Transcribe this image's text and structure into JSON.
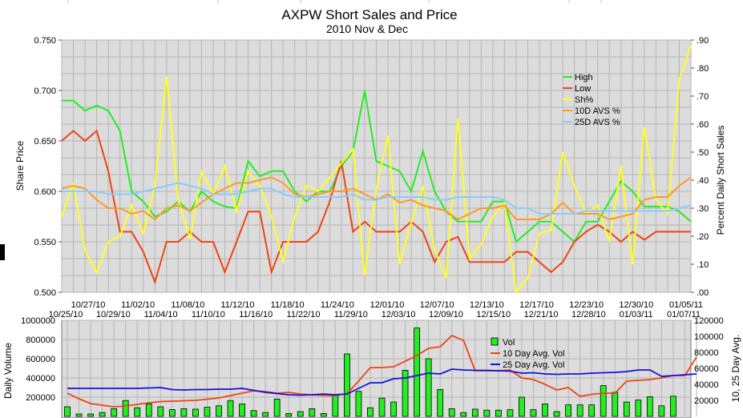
{
  "chart_data": [
    {
      "type": "line",
      "title": "AXPW Short Sales and Price",
      "subtitle": "2010 Nov & Dec",
      "ylabel": "Share Price",
      "y2label": "Percent Daily Short Sales",
      "ylim": [
        0.5,
        0.75
      ],
      "y2lim": [
        0,
        90
      ],
      "yticks": [
        "0.500",
        "0.550",
        "0.600",
        "0.650",
        "0.700",
        "0.750"
      ],
      "y2ticks": [
        ".00",
        ".10",
        ".20",
        ".30",
        ".40",
        ".50",
        ".60",
        ".70",
        ".80",
        ".90"
      ],
      "xticks_upper": [
        "10/27/10",
        "11/02/10",
        "11/08/10",
        "11/12/10",
        "11/18/10",
        "11/24/10",
        "12/01/10",
        "12/07/10",
        "12/13/10",
        "12/17/10",
        "12/23/10",
        "12/30/10",
        "01/05/11"
      ],
      "xticks_lower": [
        "10/25/10",
        "10/29/10",
        "11/04/10",
        "11/10/10",
        "11/16/10",
        "11/22/10",
        "11/29/10",
        "12/03/10",
        "12/09/10",
        "12/15/10",
        "12/21/10",
        "12/28/10",
        "01/03/11",
        "01/07/11"
      ],
      "grid": true,
      "legend_position": "top-right",
      "series": [
        {
          "name": "High",
          "axis": "left",
          "color": "#22ee22",
          "values": [
            0.69,
            0.69,
            0.68,
            0.685,
            0.68,
            0.66,
            0.6,
            0.59,
            0.575,
            0.58,
            0.59,
            0.58,
            0.6,
            0.59,
            0.585,
            0.583,
            0.63,
            0.615,
            0.62,
            0.62,
            0.6,
            0.59,
            0.6,
            0.6,
            0.625,
            0.64,
            0.7,
            0.63,
            0.625,
            0.62,
            0.6,
            0.64,
            0.6,
            0.58,
            0.57,
            0.57,
            0.57,
            0.59,
            0.59,
            0.55,
            0.56,
            0.57,
            0.57,
            0.56,
            0.55,
            0.57,
            0.57,
            0.59,
            0.61,
            0.6,
            0.585,
            0.585,
            0.585,
            0.58,
            0.57
          ]
        },
        {
          "name": "Low",
          "axis": "left",
          "color": "#ee4411",
          "values": [
            0.65,
            0.66,
            0.65,
            0.66,
            0.62,
            0.56,
            0.56,
            0.54,
            0.51,
            0.55,
            0.55,
            0.56,
            0.55,
            0.55,
            0.52,
            0.55,
            0.58,
            0.58,
            0.52,
            0.55,
            0.55,
            0.55,
            0.56,
            0.59,
            0.63,
            0.56,
            0.57,
            0.56,
            0.56,
            0.56,
            0.57,
            0.56,
            0.53,
            0.55,
            0.555,
            0.53,
            0.53,
            0.53,
            0.53,
            0.54,
            0.54,
            0.53,
            0.52,
            0.53,
            0.55,
            0.56,
            0.567,
            0.56,
            0.55,
            0.56,
            0.552,
            0.56,
            0.56,
            0.56,
            0.56
          ]
        },
        {
          "name": "Sh%",
          "axis": "right",
          "color": "#ffff22",
          "values": [
            27,
            39,
            15,
            7,
            18,
            20,
            31,
            21,
            38,
            77,
            33,
            19,
            43,
            35,
            45,
            29,
            43,
            38,
            27,
            11,
            27,
            38,
            36,
            41,
            46,
            51,
            6,
            37,
            56,
            10,
            25,
            38,
            15,
            5,
            62,
            12,
            17,
            27,
            32,
            0,
            5,
            21,
            22,
            50,
            38,
            28,
            31,
            18,
            45,
            10,
            59,
            33,
            28,
            76,
            88
          ]
        },
        {
          "name": "10D AVS %",
          "axis": "right",
          "color": "#ff9922",
          "values": [
            37,
            38,
            37,
            33,
            30,
            30,
            28,
            29,
            26,
            30,
            31,
            29,
            32,
            35,
            37,
            39,
            39,
            40,
            41,
            39,
            35,
            34,
            35,
            36,
            36,
            37,
            35,
            33,
            35,
            32,
            33,
            31,
            30,
            29,
            26,
            28,
            30,
            30,
            31,
            26,
            26,
            26,
            28,
            32,
            28,
            28,
            28,
            26,
            27,
            28,
            33,
            34,
            34,
            38,
            41
          ]
        },
        {
          "name": "25D AVS %",
          "axis": "right",
          "color": "#88ccff",
          "values": [
            36,
            36,
            36,
            36,
            35,
            35,
            35,
            36,
            37,
            38,
            39,
            38,
            37,
            35,
            35,
            35,
            36,
            37,
            37,
            35,
            34,
            34,
            34,
            34,
            34,
            35,
            33,
            33,
            34,
            34,
            34,
            34,
            33,
            33,
            34,
            34,
            34,
            34,
            33,
            30,
            30,
            28,
            28,
            28,
            28,
            29,
            29,
            29,
            29,
            29,
            29,
            29,
            29,
            30,
            31
          ]
        }
      ]
    },
    {
      "type": "bar",
      "ylabel": "Daily Volume",
      "y2label": "10, 25 Day Avg.",
      "ylim": [
        0,
        1000000
      ],
      "y2lim": [
        0,
        120000
      ],
      "yticks": [
        "200000",
        "400000",
        "600000",
        "800000",
        "1000000"
      ],
      "y2ticks": [
        "20000",
        "40000",
        "60000",
        "80000",
        "100000",
        "120000"
      ],
      "grid": true,
      "legend_position": "top-right",
      "series": [
        {
          "name": "Vol",
          "axis": "left",
          "type": "bar",
          "color": "#22ee22",
          "values": [
            100000,
            25000,
            25000,
            40000,
            80000,
            165000,
            90000,
            130000,
            100000,
            70000,
            80000,
            75000,
            95000,
            110000,
            165000,
            130000,
            60000,
            40000,
            180000,
            30000,
            50000,
            80000,
            30000,
            230000,
            650000,
            260000,
            90000,
            190000,
            150000,
            480000,
            920000,
            600000,
            280000,
            80000,
            40000,
            75000,
            65000,
            65000,
            70000,
            200000,
            70000,
            130000,
            50000,
            120000,
            120000,
            120000,
            320000,
            250000,
            150000,
            170000,
            205000,
            110000,
            210000,
            0,
            0
          ]
        },
        {
          "name": "10 Day Avg. Vol",
          "axis": "right",
          "type": "line",
          "color": "#ee4411",
          "values": [
            29000,
            22000,
            16000,
            14000,
            12000,
            13000,
            15000,
            17000,
            18500,
            19000,
            19500,
            20000,
            21500,
            23000,
            26000,
            29000,
            32000,
            31000,
            29000,
            30000,
            28000,
            27000,
            26000,
            26000,
            28500,
            44000,
            61000,
            61000,
            62000,
            69000,
            76000,
            85000,
            87000,
            101000,
            95000,
            57000,
            57000,
            57000,
            58000,
            48000,
            46000,
            40000,
            33000,
            36000,
            25000,
            27500,
            29000,
            29000,
            44000,
            45000,
            46000,
            48000,
            51000,
            51000,
            74000
          ]
        },
        {
          "name": "25 Day Avg. Vol",
          "axis": "right",
          "type": "line",
          "color": "#1111dd",
          "values": [
            35000,
            35000,
            35000,
            35000,
            35000,
            35000,
            35000,
            35500,
            36000,
            33500,
            33000,
            33500,
            33500,
            34000,
            34000,
            35000,
            32500,
            30000,
            28500,
            27000,
            26500,
            27000,
            28000,
            27000,
            28000,
            35000,
            42000,
            42000,
            47000,
            48000,
            51000,
            54000,
            53000,
            59000,
            58000,
            57500,
            57500,
            57000,
            56500,
            54000,
            54500,
            53000,
            52500,
            53000,
            53000,
            54000,
            54500,
            55000,
            56000,
            58000,
            58000,
            50000,
            51000,
            52000,
            53000
          ]
        }
      ]
    }
  ]
}
